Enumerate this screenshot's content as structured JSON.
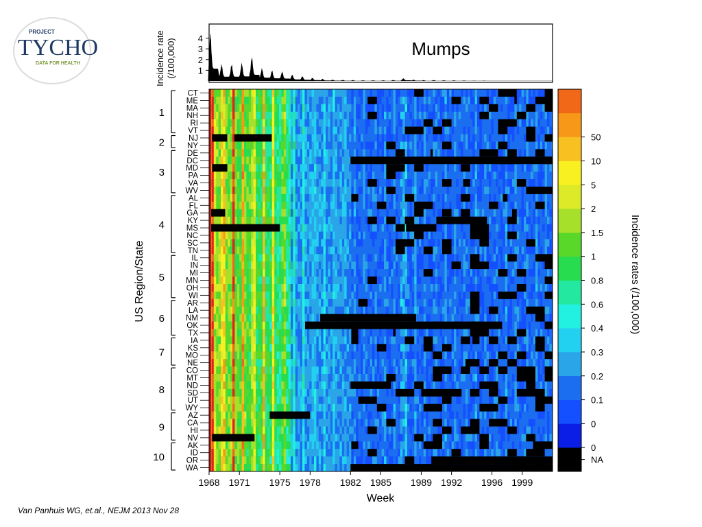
{
  "logo": {
    "top_line": "PROJECT",
    "brand": "TYCHO",
    "tagline": "DATA FOR HEALTH"
  },
  "citation": "Van Panhuis WG, et.al., NEJM 2013 Nov 28",
  "colors": {
    "na": "#000000",
    "legend_levels": [
      "#0a1ee6",
      "#1450ff",
      "#1c6ef0",
      "#2aa5e8",
      "#22d0f0",
      "#22f0e0",
      "#22e8a0",
      "#28dc50",
      "#5ad82a",
      "#a6e02a",
      "#dcea28",
      "#f8f020",
      "#f8c020",
      "#f89818",
      "#f06818",
      "#e82020"
    ],
    "logo_navy": "#1f3864",
    "logo_green": "#7a9a3a"
  },
  "chart_data": {
    "type": "heatmap",
    "title": "Mumps",
    "xlabel": "Week",
    "ylabel": "US Region/State",
    "top_ylabel": [
      "Incidence rate",
      "(/100,000)"
    ],
    "top_yticks": [
      "1",
      "2",
      "3",
      "4"
    ],
    "xticks": [
      "1968",
      "1971",
      "1975",
      "1978",
      "1982",
      "1985",
      "1989",
      "1992",
      "1996",
      "1999"
    ],
    "legend_title": "Incidence rates (/100,000)",
    "legend_labels": [
      "NA",
      "0",
      "0",
      "0.1",
      "0.2",
      "0.3",
      "0.4",
      "0.6",
      "0.8",
      "1",
      "1.5",
      "2",
      "5",
      "10",
      "50"
    ],
    "regions": [
      {
        "label": "1",
        "states": [
          "CT",
          "ME",
          "MA",
          "NH",
          "RI",
          "VT"
        ]
      },
      {
        "label": "2",
        "states": [
          "NJ",
          "NY"
        ]
      },
      {
        "label": "3",
        "states": [
          "DE",
          "DC",
          "MD",
          "PA",
          "VA",
          "WV"
        ]
      },
      {
        "label": "4",
        "states": [
          "AL",
          "FL",
          "GA",
          "KY",
          "MS",
          "NC",
          "SC",
          "TN"
        ]
      },
      {
        "label": "5",
        "states": [
          "IL",
          "IN",
          "MI",
          "MN",
          "OH",
          "WI"
        ]
      },
      {
        "label": "6",
        "states": [
          "AR",
          "LA",
          "NM",
          "OK",
          "TX"
        ]
      },
      {
        "label": "7",
        "states": [
          "IA",
          "KS",
          "MO",
          "NE"
        ]
      },
      {
        "label": "8",
        "states": [
          "CO",
          "MT",
          "ND",
          "SD",
          "UT",
          "WY"
        ]
      },
      {
        "label": "9",
        "states": [
          "AZ",
          "CA",
          "HI",
          "NV"
        ]
      },
      {
        "label": "10",
        "states": [
          "AK",
          "ID",
          "OR",
          "WA"
        ]
      }
    ],
    "year_range": [
      1968,
      2002
    ],
    "top_ylim": [
      0,
      5
    ],
    "top_series_peaks": [
      {
        "year": 1968.0,
        "value": 4.6
      },
      {
        "year": 1969.1,
        "value": 1.6
      },
      {
        "year": 1970.1,
        "value": 1.6
      },
      {
        "year": 1971.1,
        "value": 1.7
      },
      {
        "year": 1972.1,
        "value": 2.3
      },
      {
        "year": 1973.1,
        "value": 1.2
      },
      {
        "year": 1974.1,
        "value": 1.0
      },
      {
        "year": 1975.1,
        "value": 0.9
      },
      {
        "year": 1976.1,
        "value": 0.6
      },
      {
        "year": 1977.1,
        "value": 0.45
      },
      {
        "year": 1978.1,
        "value": 0.3
      },
      {
        "year": 1979.1,
        "value": 0.2
      },
      {
        "year": 1980.1,
        "value": 0.12
      },
      {
        "year": 1981.1,
        "value": 0.1
      },
      {
        "year": 1982.1,
        "value": 0.08
      },
      {
        "year": 1983.1,
        "value": 0.06
      },
      {
        "year": 1984.1,
        "value": 0.06
      },
      {
        "year": 1985.1,
        "value": 0.06
      },
      {
        "year": 1986.1,
        "value": 0.09
      },
      {
        "year": 1987.1,
        "value": 0.25
      },
      {
        "year": 1988.1,
        "value": 0.12
      },
      {
        "year": 1989.1,
        "value": 0.08
      },
      {
        "year": 1990.1,
        "value": 0.08
      },
      {
        "year": 1991.1,
        "value": 0.06
      },
      {
        "year": 1992.1,
        "value": 0.05
      },
      {
        "year": 1993.1,
        "value": 0.04
      },
      {
        "year": 1994.1,
        "value": 0.03
      },
      {
        "year": 1995.1,
        "value": 0.03
      },
      {
        "year": 1996.1,
        "value": 0.02
      },
      {
        "year": 1997.1,
        "value": 0.02
      },
      {
        "year": 1998.1,
        "value": 0.02
      },
      {
        "year": 1999.1,
        "value": 0.02
      },
      {
        "year": 2000.1,
        "value": 0.02
      },
      {
        "year": 2001.1,
        "value": 0.02
      }
    ],
    "na_blocks": [
      {
        "state": "NJ",
        "from": 1968.3,
        "to": 1969.8
      },
      {
        "state": "NJ",
        "from": 1970.5,
        "to": 1974.2
      },
      {
        "state": "DC",
        "from": 1982.0,
        "to": 2002.0
      },
      {
        "state": "MD",
        "from": 1968.3,
        "to": 1969.8
      },
      {
        "state": "GA",
        "from": 1968.2,
        "to": 1969.6
      },
      {
        "state": "MS",
        "from": 1968.2,
        "to": 1975.0
      },
      {
        "state": "MS",
        "from": 1987.5,
        "to": 1990.5
      },
      {
        "state": "KY",
        "from": 1990.5,
        "to": 1995.5
      },
      {
        "state": "NM",
        "from": 1979.0,
        "to": 1988.5
      },
      {
        "state": "OK",
        "from": 1977.5,
        "to": 1997.0
      },
      {
        "state": "AZ",
        "from": 1974.0,
        "to": 1978.0
      },
      {
        "state": "NV",
        "from": 1968.3,
        "to": 1972.5
      },
      {
        "state": "WA",
        "from": 1982.0,
        "to": 2002.0
      },
      {
        "state": "OR",
        "from": 1990.0,
        "to": 2002.0
      },
      {
        "state": "ND",
        "from": 1982.0,
        "to": 1986.0
      },
      {
        "state": "SD",
        "from": 1989.0,
        "to": 1993.0
      }
    ],
    "grid": false,
    "legend_position": "right"
  }
}
